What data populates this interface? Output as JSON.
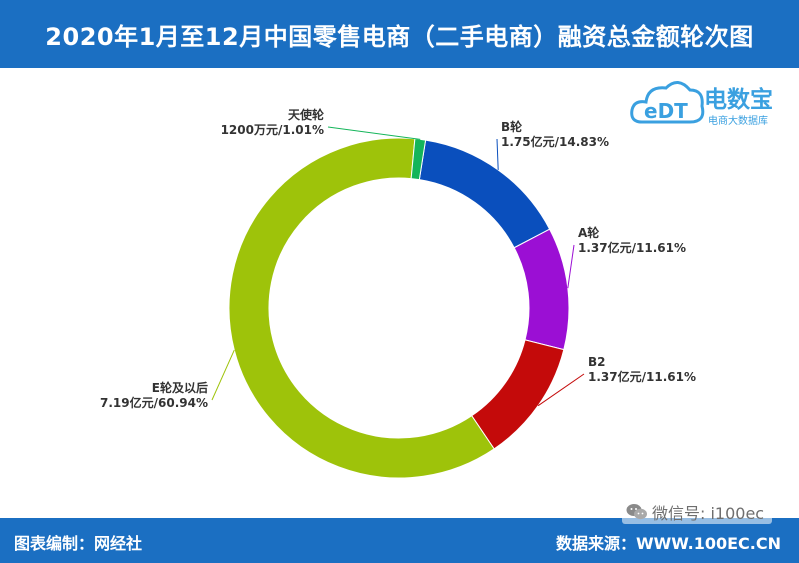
{
  "header": {
    "title": "2020年1月至12月中国零售电商（二手电商）融资总金额轮次图"
  },
  "logo": {
    "name": "电数宝",
    "subtitle": "电商大数据库",
    "mark_text": "eDT"
  },
  "footer": {
    "left": "图表编制：网经社",
    "right": "数据来源：WWW.100EC.CN"
  },
  "watermark": {
    "text": "微信号: i100ec",
    "icon": "wechat-icon"
  },
  "chart_data": {
    "type": "pie",
    "donut": true,
    "title": "",
    "categories": [
      "B轮",
      "A轮",
      "B2",
      "E轮及以后",
      "天使轮"
    ],
    "values": [
      14.83,
      11.61,
      11.61,
      60.94,
      1.01
    ],
    "unit": "%",
    "data_labels": [
      {
        "name": "B轮",
        "text": "1.75亿元/14.83%"
      },
      {
        "name": "A轮",
        "text": "1.37亿元/11.61%"
      },
      {
        "name": "B2",
        "text": "1.37亿元/11.61%"
      },
      {
        "name": "E轮及以后",
        "text": "7.19亿元/60.94%"
      },
      {
        "name": "天使轮",
        "text": "1200万元/1.01%"
      }
    ],
    "colors": [
      "#0a4fbd",
      "#9b0fd4",
      "#c40a0a",
      "#9ec30a",
      "#14b55a"
    ],
    "legend": "none"
  }
}
